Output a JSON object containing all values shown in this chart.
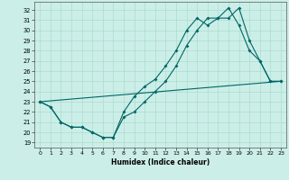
{
  "xlabel": "Humidex (Indice chaleur)",
  "xlim": [
    -0.5,
    23.5
  ],
  "ylim": [
    18.5,
    32.8
  ],
  "yticks": [
    19,
    20,
    21,
    22,
    23,
    24,
    25,
    26,
    27,
    28,
    29,
    30,
    31,
    32
  ],
  "xticks": [
    0,
    1,
    2,
    3,
    4,
    5,
    6,
    7,
    8,
    9,
    10,
    11,
    12,
    13,
    14,
    15,
    16,
    17,
    18,
    19,
    20,
    21,
    22,
    23
  ],
  "bg_color": "#cceee8",
  "grid_color": "#aaddcc",
  "line_color": "#006666",
  "line1_x": [
    0,
    1,
    2,
    3,
    4,
    5,
    6,
    7,
    8,
    9,
    10,
    11,
    12,
    13,
    14,
    15,
    16,
    17,
    18,
    19,
    20,
    21,
    22,
    23
  ],
  "line1_y": [
    23.0,
    22.5,
    21.0,
    20.5,
    20.5,
    20.0,
    19.5,
    19.5,
    22.0,
    23.5,
    24.5,
    25.2,
    26.5,
    28.0,
    30.0,
    31.2,
    30.5,
    31.2,
    31.2,
    32.2,
    29.0,
    27.0,
    25.0,
    25.0
  ],
  "line2_x": [
    0,
    1,
    2,
    3,
    4,
    5,
    6,
    7,
    8,
    9,
    10,
    11,
    12,
    13,
    14,
    15,
    16,
    17,
    18,
    19,
    20,
    21,
    22,
    23
  ],
  "line2_y": [
    23.0,
    22.5,
    21.0,
    20.5,
    20.5,
    20.0,
    19.5,
    19.5,
    21.5,
    22.0,
    23.0,
    24.0,
    25.0,
    26.5,
    28.5,
    30.0,
    31.2,
    31.2,
    32.2,
    30.5,
    28.0,
    27.0,
    25.0,
    25.0
  ],
  "line3_x": [
    0,
    23
  ],
  "line3_y": [
    23.0,
    25.0
  ]
}
